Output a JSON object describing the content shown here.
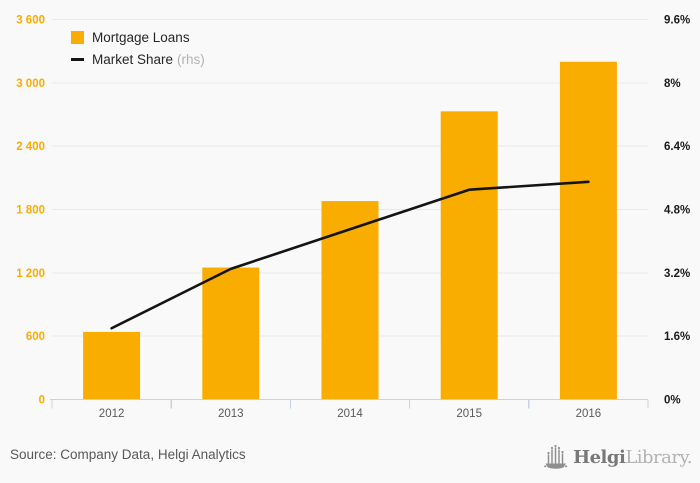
{
  "colors": {
    "bar": "#f9ad00",
    "line": "#141414",
    "grid": "#e9e9e9",
    "axis_line": "#c8d2e0",
    "left_label": "#f9ad00",
    "right_label": "#1a1a1a",
    "x_label": "#595959",
    "background": "#f9f9f9"
  },
  "legend": {
    "items": [
      {
        "label": "Mortgage Loans",
        "type": "square"
      },
      {
        "label": "Market Share",
        "suffix": "(rhs)",
        "type": "line"
      }
    ]
  },
  "chart_data": {
    "type": "bar",
    "categories": [
      "2012",
      "2013",
      "2014",
      "2015",
      "2016"
    ],
    "series": [
      {
        "name": "Mortgage Loans",
        "type": "bar",
        "axis": "left",
        "values": [
          640,
          1250,
          1880,
          2730,
          3200
        ]
      },
      {
        "name": "Market Share (rhs)",
        "type": "line",
        "axis": "right",
        "values": [
          1.8,
          3.3,
          4.3,
          5.3,
          5.5
        ]
      }
    ],
    "left_axis": {
      "min": 0,
      "max": 3600,
      "step": 600,
      "tick_labels": [
        "0",
        "600",
        "1 200",
        "1 800",
        "2 400",
        "3 000",
        "3 600"
      ]
    },
    "right_axis": {
      "min": 0,
      "max": 9.6,
      "step": 1.6,
      "tick_labels": [
        "0%",
        "1.6%",
        "3.2%",
        "4.8%",
        "6.4%",
        "8%",
        "9.6%"
      ]
    },
    "grid": true,
    "legend_position": "top-left"
  },
  "footer": {
    "source": "Source: Company Data, Helgi Analytics",
    "logo": {
      "name": "Helgi",
      "suffix": "Library."
    }
  }
}
